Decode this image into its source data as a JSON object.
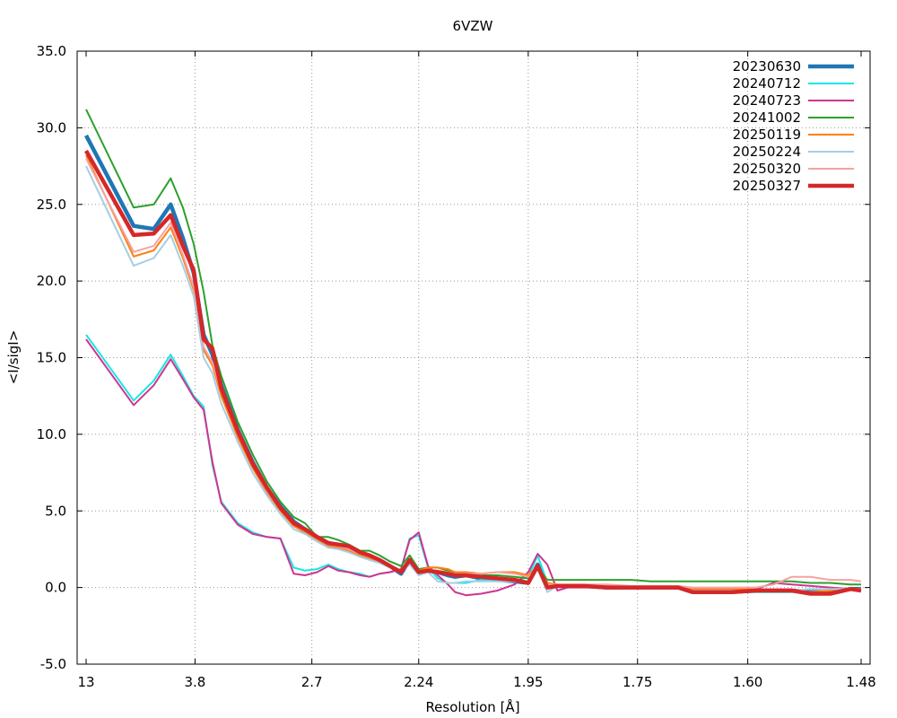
{
  "chart_data": {
    "type": "line",
    "title": "6VZW",
    "xlabel": "Resolution [Å]",
    "ylabel": "<I/sigI>",
    "x_scale": "inverse-square resolution (1/d^2)",
    "ylim": [
      -5,
      35
    ],
    "xlim_resolution": [
      13,
      1.48
    ],
    "grid": true,
    "legend_position": "top-right",
    "x_ticks": [
      "13",
      "3.8",
      "2.7",
      "2.24",
      "1.95",
      "1.75",
      "1.60",
      "1.48"
    ],
    "y_ticks": [
      "-5.0",
      "0.0",
      "5.0",
      "10.0",
      "15.0",
      "20.0",
      "25.0",
      "30.0",
      "35.0"
    ],
    "x": [
      13.0,
      5.46,
      4.7,
      4.26,
      4.01,
      3.82,
      3.67,
      3.55,
      3.44,
      3.26,
      3.12,
      3.0,
      2.9,
      2.81,
      2.74,
      2.67,
      2.61,
      2.56,
      2.51,
      2.46,
      2.42,
      2.38,
      2.34,
      2.3,
      2.27,
      2.24,
      2.21,
      2.18,
      2.15,
      2.13,
      2.1,
      2.06,
      2.02,
      1.98,
      1.95,
      1.93,
      1.91,
      1.89,
      1.87,
      1.84,
      1.8,
      1.76,
      1.73,
      1.69,
      1.67,
      1.64,
      1.62,
      1.59,
      1.57,
      1.55,
      1.53,
      1.51,
      1.49,
      1.48
    ],
    "series": [
      {
        "name": "20230630",
        "color": "#1f77b4",
        "width": 4.5,
        "values": [
          29.5,
          23.6,
          23.4,
          25.0,
          22.8,
          20.5,
          16.5,
          15.2,
          13.2,
          10.3,
          8.2,
          6.5,
          5.3,
          4.3,
          3.8,
          3.3,
          2.9,
          2.8,
          2.7,
          2.3,
          2.0,
          1.8,
          1.4,
          0.9,
          1.8,
          1.0,
          1.1,
          1.0,
          0.8,
          0.7,
          0.8,
          0.6,
          0.5,
          0.4,
          0.3,
          1.5,
          0.1,
          0.1,
          0.1,
          0.1,
          0.0,
          0.0,
          0.0,
          0.0,
          -0.3,
          -0.3,
          -0.3,
          -0.2,
          -0.2,
          -0.2,
          -0.3,
          -0.3,
          -0.1,
          -0.1
        ]
      },
      {
        "name": "20240712",
        "color": "#17e6e6",
        "width": 2,
        "values": [
          16.5,
          12.2,
          13.5,
          15.2,
          13.8,
          12.5,
          11.8,
          8.0,
          5.6,
          4.2,
          3.6,
          3.3,
          3.2,
          1.3,
          1.1,
          1.2,
          1.5,
          1.2,
          1.0,
          0.9,
          0.7,
          0.9,
          1.0,
          1.2,
          3.2,
          3.4,
          1.3,
          0.6,
          0.3,
          0.3,
          0.3,
          0.5,
          0.4,
          0.4,
          0.7,
          2.1,
          0.3,
          0.1,
          0.1,
          0.1,
          0.0,
          0.0,
          0.0,
          0.0,
          -0.2,
          -0.2,
          -0.3,
          -0.3,
          -0.3,
          -0.3,
          -0.3,
          -0.2,
          -0.1,
          -0.1
        ]
      },
      {
        "name": "20240723",
        "color": "#d0348f",
        "width": 2,
        "values": [
          16.2,
          11.9,
          13.2,
          14.9,
          13.6,
          12.4,
          11.6,
          8.2,
          5.5,
          4.1,
          3.5,
          3.3,
          3.2,
          0.9,
          0.8,
          1.0,
          1.4,
          1.1,
          1.0,
          0.8,
          0.7,
          0.9,
          1.0,
          1.2,
          3.1,
          3.6,
          1.4,
          0.8,
          0.2,
          -0.3,
          -0.5,
          -0.4,
          -0.2,
          0.2,
          1.0,
          2.2,
          1.5,
          -0.2,
          0.0,
          0.0,
          0.0,
          0.0,
          0.0,
          0.0,
          -0.1,
          -0.1,
          -0.1,
          -0.1,
          0.3,
          0.2,
          0.1,
          0.0,
          -0.1,
          -0.2
        ]
      },
      {
        "name": "20241002",
        "color": "#2ca02c",
        "width": 2,
        "values": [
          31.2,
          24.8,
          25.0,
          26.7,
          24.8,
          22.4,
          19.3,
          15.8,
          13.8,
          10.8,
          8.7,
          6.9,
          5.6,
          4.6,
          4.2,
          3.3,
          3.3,
          3.1,
          2.8,
          2.4,
          2.4,
          2.1,
          1.7,
          1.4,
          2.1,
          1.2,
          1.3,
          1.3,
          1.1,
          1.0,
          1.0,
          0.8,
          0.8,
          0.7,
          0.6,
          1.3,
          0.5,
          0.5,
          0.5,
          0.5,
          0.5,
          0.5,
          0.4,
          0.4,
          0.4,
          0.4,
          0.4,
          0.4,
          0.4,
          0.4,
          0.3,
          0.3,
          0.2,
          0.2
        ]
      },
      {
        "name": "20250119",
        "color": "#ff7f0e",
        "width": 2,
        "values": [
          28.2,
          21.6,
          22.0,
          23.5,
          21.5,
          19.4,
          15.5,
          14.5,
          12.5,
          9.8,
          7.8,
          6.2,
          5.0,
          4.0,
          3.6,
          3.1,
          2.7,
          2.6,
          2.4,
          2.1,
          1.9,
          1.7,
          1.4,
          1.1,
          1.6,
          1.1,
          1.3,
          1.3,
          1.2,
          1.0,
          1.0,
          0.9,
          1.0,
          1.0,
          0.8,
          1.4,
          0.3,
          0.2,
          0.1,
          0.1,
          0.1,
          0.0,
          0.0,
          0.0,
          -0.1,
          -0.1,
          -0.1,
          -0.1,
          -0.2,
          -0.2,
          -0.3,
          -0.2,
          -0.1,
          -0.1
        ]
      },
      {
        "name": "20250224",
        "color": "#a6cee3",
        "width": 2,
        "values": [
          27.5,
          21.0,
          21.5,
          23.0,
          21.0,
          19.0,
          15.0,
          14.0,
          12.0,
          9.5,
          7.5,
          6.0,
          4.8,
          3.8,
          3.5,
          3.0,
          2.6,
          2.5,
          2.3,
          2.0,
          1.8,
          1.6,
          1.3,
          1.0,
          1.5,
          0.8,
          1.0,
          0.4,
          0.3,
          0.3,
          0.4,
          0.4,
          0.4,
          0.4,
          0.4,
          1.2,
          -0.3,
          0.1,
          0.1,
          0.1,
          0.0,
          0.0,
          0.0,
          0.0,
          -0.2,
          -0.2,
          -0.2,
          -0.2,
          -0.2,
          -0.2,
          -0.1,
          -0.1,
          -0.1,
          -0.1
        ]
      },
      {
        "name": "20250320",
        "color": "#f4a3a3",
        "width": 2,
        "values": [
          28.0,
          21.9,
          22.3,
          23.8,
          21.7,
          19.6,
          15.7,
          14.7,
          12.8,
          10.0,
          8.0,
          6.3,
          5.1,
          4.1,
          3.7,
          3.2,
          2.8,
          2.7,
          2.5,
          2.2,
          2.0,
          1.7,
          1.4,
          1.0,
          1.7,
          1.0,
          1.1,
          1.1,
          1.0,
          0.9,
          0.9,
          0.9,
          1.0,
          0.9,
          0.7,
          1.2,
          0.2,
          0.2,
          0.2,
          0.2,
          0.2,
          0.1,
          0.1,
          0.1,
          0.0,
          0.0,
          0.0,
          0.0,
          0.2,
          0.7,
          0.7,
          0.5,
          0.5,
          0.4
        ]
      },
      {
        "name": "20250327",
        "color": "#d62728",
        "width": 4.5,
        "values": [
          28.5,
          23.0,
          23.1,
          24.3,
          22.3,
          20.7,
          16.2,
          15.6,
          13.0,
          10.2,
          8.1,
          6.5,
          5.2,
          4.2,
          3.8,
          3.3,
          2.9,
          2.8,
          2.7,
          2.3,
          2.1,
          1.8,
          1.4,
          1.0,
          1.8,
          1.0,
          1.1,
          1.0,
          0.9,
          0.8,
          0.8,
          0.7,
          0.6,
          0.5,
          0.3,
          1.4,
          0.0,
          0.1,
          0.1,
          0.1,
          0.0,
          0.0,
          0.0,
          0.0,
          -0.3,
          -0.3,
          -0.3,
          -0.2,
          -0.2,
          -0.2,
          -0.4,
          -0.4,
          -0.1,
          -0.2
        ]
      }
    ]
  }
}
